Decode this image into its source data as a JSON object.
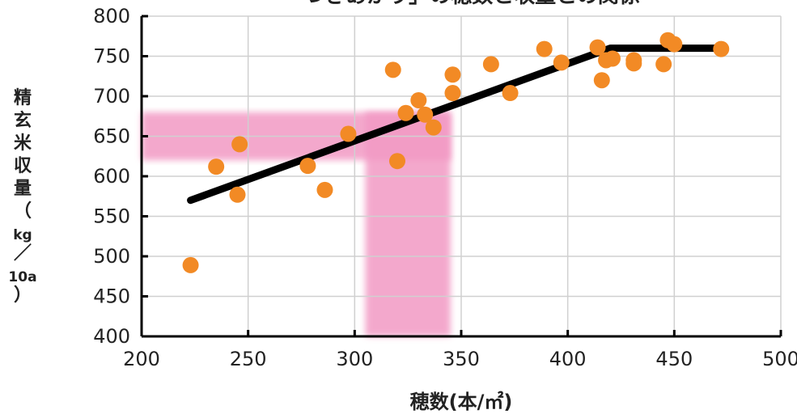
{
  "chart_data": {
    "type": "scatter",
    "title": "「つきあかり」の穂数と収量との関係",
    "xlabel": "穂数(本/㎡)",
    "ylabel_chars": [
      "精",
      "玄",
      "米",
      "収",
      "量",
      "（",
      "kg",
      "／",
      "10a",
      "）"
    ],
    "xlim": [
      200,
      500
    ],
    "ylim": [
      400,
      800
    ],
    "x_ticks": [
      "200",
      "250",
      "300",
      "350",
      "400",
      "450",
      "500"
    ],
    "y_ticks": [
      "400",
      "450",
      "500",
      "550",
      "600",
      "650",
      "700",
      "750",
      "800"
    ],
    "grid": true,
    "colors": {
      "points": "#f28a25",
      "trend": "#000000",
      "highlight": "#f29ac4",
      "grid": "#d0d0d0",
      "axis": "#000000"
    },
    "highlight_regions": [
      {
        "x_range": [
          200,
          345
        ],
        "y_range": [
          620,
          680
        ]
      },
      {
        "x_range": [
          305,
          345
        ],
        "y_range": [
          400,
          680
        ]
      }
    ],
    "trend_line": [
      {
        "x": 223,
        "y": 570
      },
      {
        "x": 420,
        "y": 760
      },
      {
        "x": 474,
        "y": 760
      }
    ],
    "points": [
      {
        "x": 223,
        "y": 489
      },
      {
        "x": 235,
        "y": 612
      },
      {
        "x": 245,
        "y": 577
      },
      {
        "x": 246,
        "y": 640
      },
      {
        "x": 278,
        "y": 613
      },
      {
        "x": 286,
        "y": 583
      },
      {
        "x": 297,
        "y": 653
      },
      {
        "x": 318,
        "y": 733
      },
      {
        "x": 320,
        "y": 619
      },
      {
        "x": 324,
        "y": 679
      },
      {
        "x": 330,
        "y": 695
      },
      {
        "x": 333,
        "y": 677
      },
      {
        "x": 337,
        "y": 661
      },
      {
        "x": 346,
        "y": 727
      },
      {
        "x": 346,
        "y": 704
      },
      {
        "x": 364,
        "y": 740
      },
      {
        "x": 373,
        "y": 704
      },
      {
        "x": 389,
        "y": 759
      },
      {
        "x": 397,
        "y": 742
      },
      {
        "x": 414,
        "y": 761
      },
      {
        "x": 416,
        "y": 720
      },
      {
        "x": 418,
        "y": 745
      },
      {
        "x": 421,
        "y": 747
      },
      {
        "x": 431,
        "y": 741
      },
      {
        "x": 431,
        "y": 745
      },
      {
        "x": 445,
        "y": 740
      },
      {
        "x": 447,
        "y": 770
      },
      {
        "x": 450,
        "y": 765
      },
      {
        "x": 472,
        "y": 759
      }
    ]
  }
}
